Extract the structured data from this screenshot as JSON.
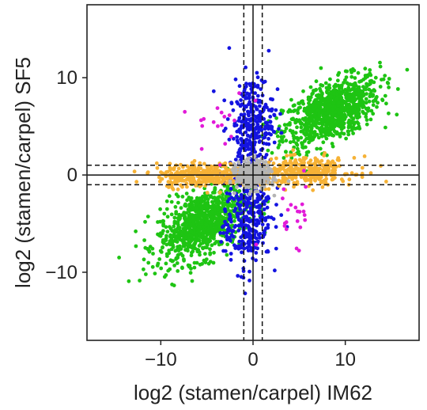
{
  "chart_data": {
    "type": "scatter",
    "xlabel": "log2 (stamen/carpel) IM62",
    "ylabel": "log2 (stamen/carpel) SF5",
    "xlim": [
      -18,
      18
    ],
    "ylim": [
      -17,
      17.5
    ],
    "x_ticks": [
      -10,
      0,
      10
    ],
    "y_ticks": [
      -10,
      0,
      10
    ],
    "x_tick_labels": [
      "−10",
      "0",
      "10"
    ],
    "y_tick_labels": [
      "−10",
      "0",
      "10"
    ],
    "grid": false,
    "reference_lines": {
      "solid": {
        "x": 0,
        "y": 0
      },
      "dashed": {
        "x": [
          -1,
          1
        ],
        "y": [
          -1,
          1
        ]
      }
    },
    "groups": [
      {
        "color": "#1ec413",
        "clusters": [
          {
            "cx": 8.5,
            "cy": 6.5,
            "sx": 2.6,
            "sy": 1.8,
            "rho": 0.55,
            "n": 900
          },
          {
            "cx": -5.5,
            "cy": -5,
            "sx": 2.4,
            "sy": 2.0,
            "rho": 0.5,
            "n": 900
          }
        ]
      },
      {
        "color": "#1414e0",
        "clusters": [
          {
            "cx": -0.2,
            "cy": 5,
            "sx": 1.2,
            "sy": 2.6,
            "rho": 0.2,
            "n": 320
          },
          {
            "cx": -0.6,
            "cy": -4.5,
            "sx": 1.3,
            "sy": 2.6,
            "rho": 0.2,
            "n": 320
          }
        ]
      },
      {
        "color": "#f6b236",
        "clusters": [
          {
            "cx": -5.2,
            "cy": 0,
            "sx": 2.6,
            "sy": 0.6,
            "rho": 0.1,
            "n": 340
          },
          {
            "cx": 5.5,
            "cy": 0.3,
            "sx": 2.8,
            "sy": 0.7,
            "rho": 0.1,
            "n": 340
          }
        ]
      },
      {
        "color": "#e21bd8",
        "clusters": [
          {
            "cx": -3.5,
            "cy": 5.2,
            "sx": 1.6,
            "sy": 1.8,
            "rho": 0.0,
            "n": 18
          },
          {
            "cx": 4.2,
            "cy": -4.0,
            "sx": 1.6,
            "sy": 1.6,
            "rho": 0.0,
            "n": 22
          }
        ]
      },
      {
        "color": "#b4b4b4",
        "clusters": [
          {
            "cx": 0,
            "cy": 0,
            "sx": 0.9,
            "sy": 0.7,
            "rho": 0.0,
            "n": 400
          }
        ]
      }
    ]
  }
}
